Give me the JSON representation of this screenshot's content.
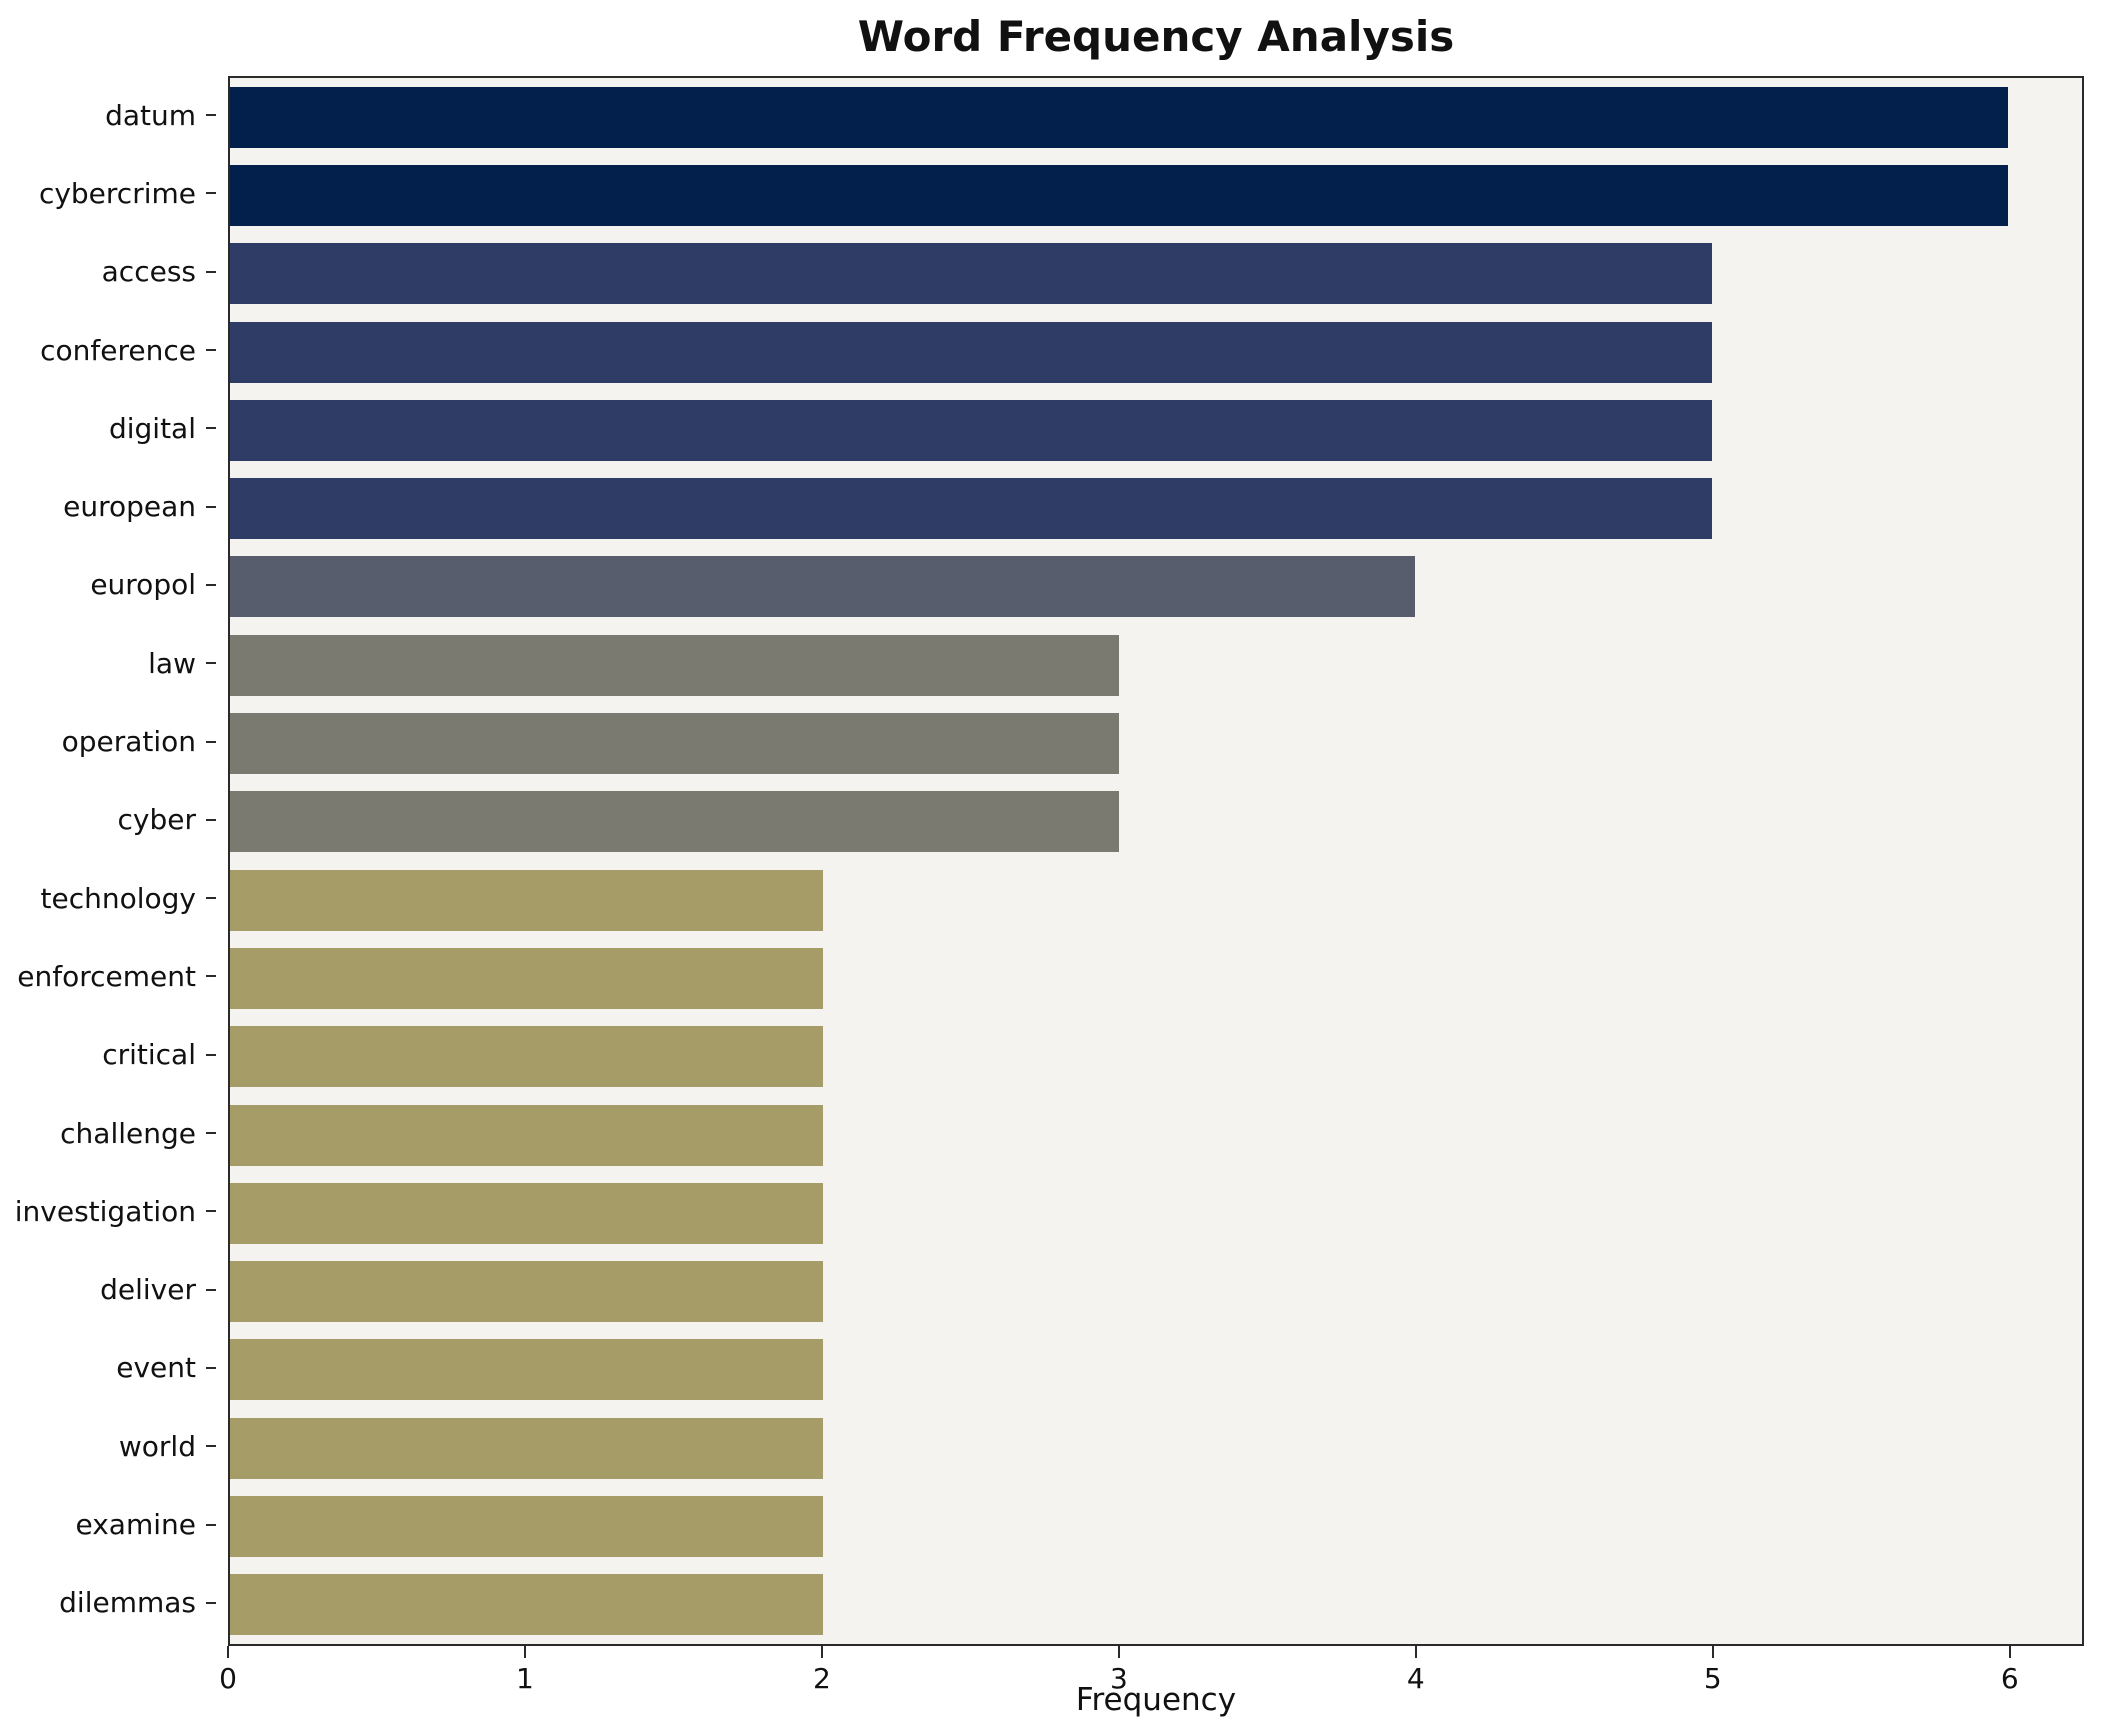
{
  "chart_data": {
    "type": "bar",
    "orientation": "horizontal",
    "title": "Word Frequency Analysis",
    "xlabel": "Frequency",
    "ylabel": "",
    "categories": [
      "datum",
      "cybercrime",
      "access",
      "conference",
      "digital",
      "european",
      "europol",
      "law",
      "operation",
      "cyber",
      "technology",
      "enforcement",
      "critical",
      "challenge",
      "investigation",
      "deliver",
      "event",
      "world",
      "examine",
      "dilemmas"
    ],
    "values": [
      6,
      6,
      5,
      5,
      5,
      5,
      4,
      3,
      3,
      3,
      2,
      2,
      2,
      2,
      2,
      2,
      2,
      2,
      2,
      2
    ],
    "bar_colors": [
      "#03204c",
      "#03204c",
      "#2e3c66",
      "#2e3c66",
      "#2e3c66",
      "#2e3c66",
      "#575d6d",
      "#7b7a71",
      "#7b7a71",
      "#7b7a71",
      "#a59c68",
      "#a59c68",
      "#a59c68",
      "#a59c68",
      "#a59c68",
      "#a59c68",
      "#a59c68",
      "#a59c68",
      "#a59c68",
      "#a59c68"
    ],
    "xlim": [
      0,
      6.25
    ],
    "xticks": [
      "0",
      "1",
      "2",
      "3",
      "4",
      "5",
      "6"
    ],
    "grid": false,
    "legend_position": "none",
    "bar_height_frac": 0.78,
    "plot_bg": "#f4f3f0",
    "figure_bg": "#ffffff",
    "spine_color": "#2a2a2a"
  }
}
